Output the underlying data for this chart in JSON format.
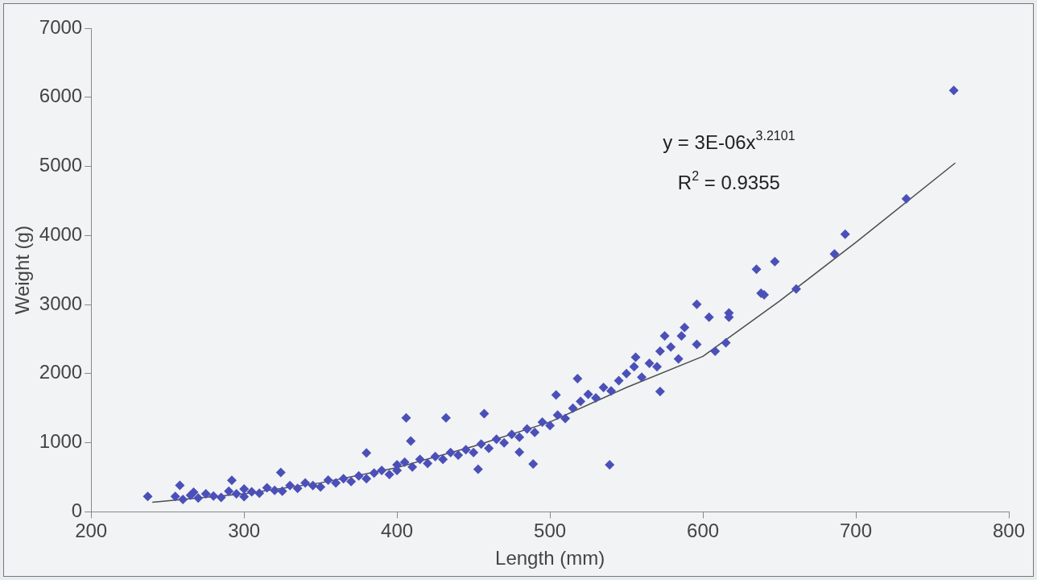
{
  "chart_data": {
    "type": "scatter",
    "xlabel": "Length (mm)",
    "ylabel": "Weight (g)",
    "xlim": [
      200,
      800
    ],
    "xticks": [
      200,
      300,
      400,
      500,
      600,
      700,
      800
    ],
    "ylim": [
      0,
      7000
    ],
    "yticks": [
      0,
      1000,
      2000,
      3000,
      4000,
      5000,
      6000,
      7000
    ],
    "grid": false,
    "legend": false,
    "marker": "diamond",
    "annotations": [
      "y = 3E-06x$^{3.2101}$",
      "R$^{2}$ = 0.9355"
    ],
    "series": [
      {
        "type": "scatter",
        "color": "#4b50b8",
        "x": [
          237,
          255,
          258,
          260,
          265,
          267,
          270,
          275,
          280,
          285,
          290,
          292,
          295,
          300,
          300,
          305,
          310,
          315,
          320,
          324,
          325,
          330,
          335,
          340,
          345,
          350,
          355,
          360,
          365,
          370,
          375,
          380,
          380,
          385,
          390,
          395,
          400,
          400,
          405,
          406,
          409,
          410,
          415,
          420,
          425,
          430,
          432,
          435,
          440,
          445,
          450,
          453,
          455,
          457,
          460,
          465,
          470,
          475,
          480,
          480,
          485,
          489,
          490,
          495,
          500,
          504,
          505,
          510,
          515,
          518,
          520,
          525,
          530,
          535,
          539,
          540,
          545,
          550,
          555,
          556,
          560,
          565,
          570,
          572,
          572,
          575,
          579,
          584,
          586,
          588,
          596,
          596,
          604,
          608,
          615,
          617,
          617,
          635,
          638,
          640,
          647,
          661,
          686,
          693,
          733,
          764
        ],
        "values": [
          222,
          222,
          383,
          180,
          240,
          285,
          200,
          260,
          230,
          210,
          300,
          457,
          260,
          330,
          220,
          290,
          270,
          350,
          310,
          569,
          300,
          380,
          340,
          420,
          380,
          360,
          460,
          420,
          480,
          440,
          520,
          480,
          853,
          560,
          600,
          540,
          680,
          600,
          720,
          1360,
          1026,
          650,
          760,
          700,
          800,
          760,
          1360,
          860,
          820,
          900,
          860,
          618,
          980,
          1422,
          920,
          1050,
          1000,
          1120,
          1080,
          865,
          1200,
          692,
          1150,
          1300,
          1250,
          1693,
          1400,
          1350,
          1500,
          1928,
          1600,
          1700,
          1650,
          1800,
          680,
          1750,
          1900,
          2000,
          2100,
          2237,
          1950,
          2150,
          2100,
          2324,
          1743,
          2546,
          2386,
          2213,
          2546,
          2670,
          2423,
          3004,
          2818,
          2324,
          2447,
          2880,
          2818,
          3510,
          3165,
          3140,
          3622,
          3226,
          3733,
          4017,
          4530,
          6100
        ]
      },
      {
        "type": "line",
        "color": "#4d4d4d",
        "marker": "none",
        "x": [
          240,
          300,
          350,
          400,
          450,
          500,
          550,
          600,
          650,
          700,
          765
        ],
        "values": [
          140,
          260,
          420,
          640,
          950,
          1300,
          1800,
          2250,
          3050,
          3900,
          5050
        ]
      }
    ]
  }
}
